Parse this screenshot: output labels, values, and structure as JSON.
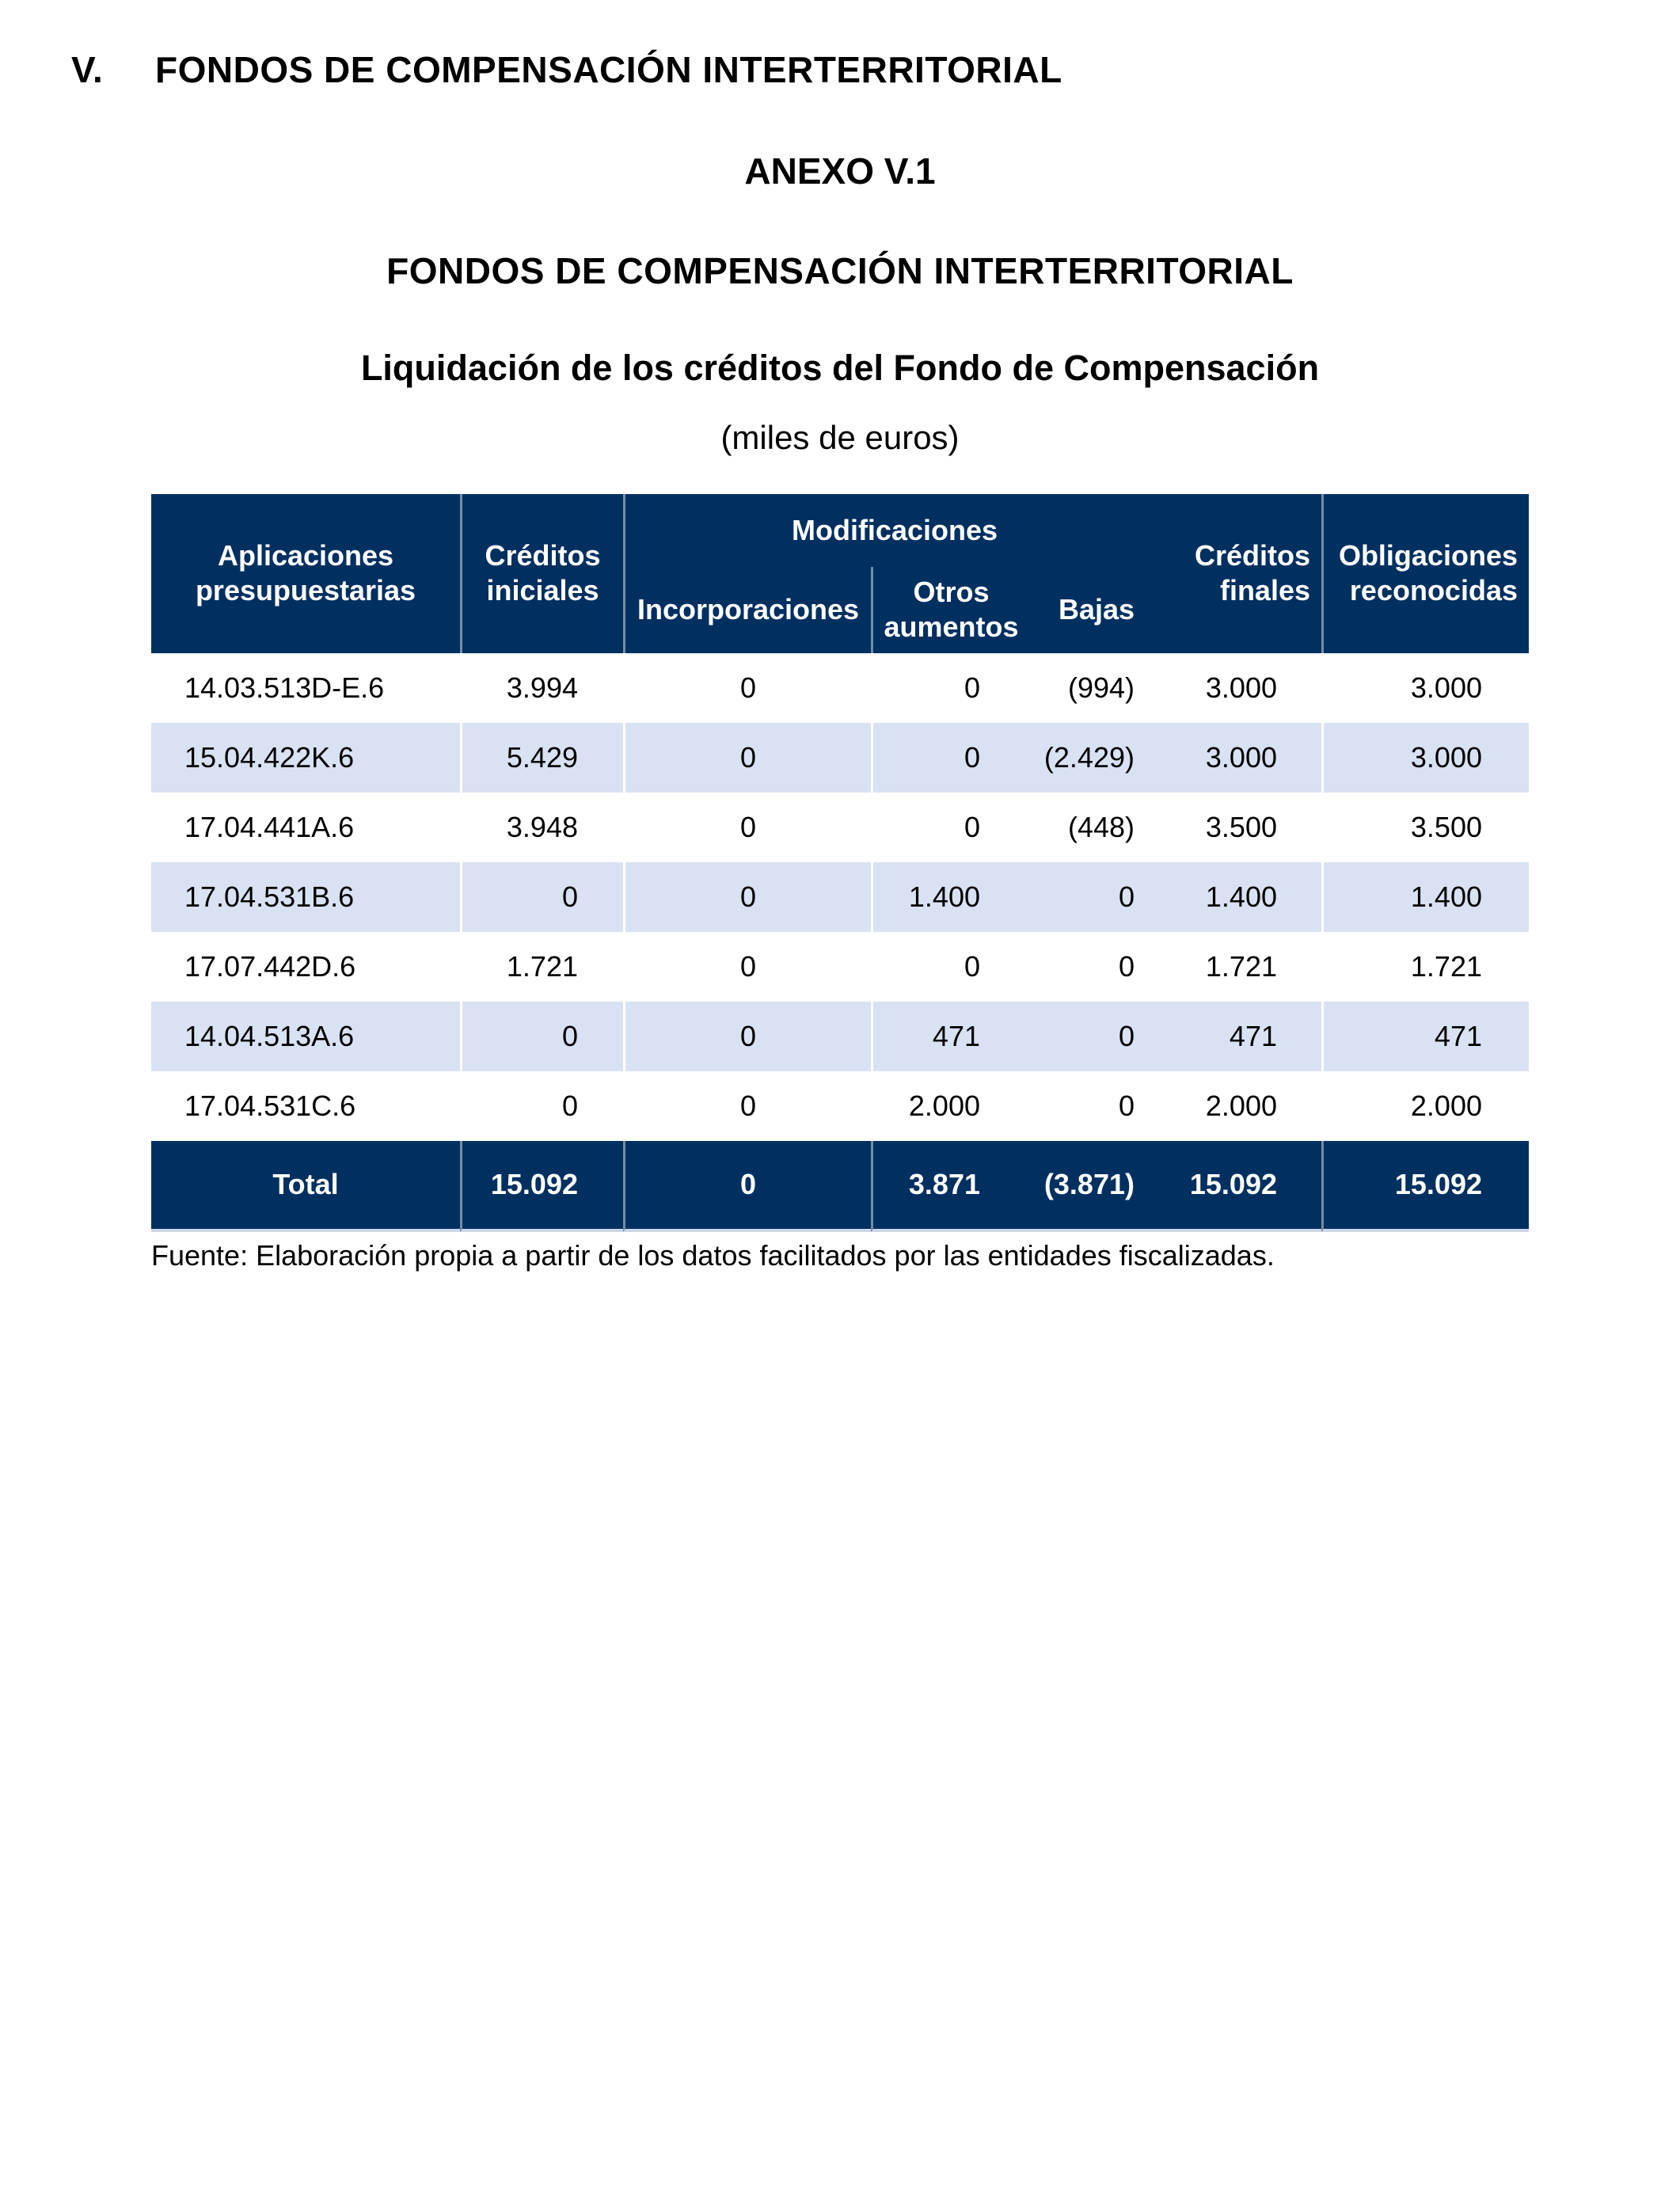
{
  "page": {
    "section_number": "V.",
    "section_title": "FONDOS DE COMPENSACIÓN INTERTERRITORIAL",
    "annex_label": "ANEXO V.1",
    "annex_title": "FONDOS DE COMPENSACIÓN INTERTERRITORIAL",
    "table_title": "Liquidación de los créditos del Fondo de Compensación",
    "table_units": "(miles de euros)",
    "source_note": "Fuente: Elaboración propia a partir de los datos facilitados por las entidades fiscalizadas."
  },
  "table": {
    "colors": {
      "header_bg": "#003060",
      "alt_row_bg": "#d9e2f2",
      "header_text": "#ffffff",
      "body_text": "#000000"
    },
    "header": {
      "col_aplicaciones": "Aplicaciones presupuestarias",
      "col_creditos_iniciales": "Créditos iniciales",
      "group_modificaciones": "Modificaciones",
      "col_incorporaciones": "Incorporaciones",
      "col_otros_aumentos": "Otros aumentos",
      "col_bajas": "Bajas",
      "col_creditos_finales": "Créditos finales",
      "col_obligaciones": "Obligaciones reconocidas"
    },
    "rows": [
      {
        "aplicacion": "14.03.513D-E.6",
        "creditos_iniciales": "3.994",
        "incorporaciones": "0",
        "otros_aumentos": "0",
        "bajas": "(994)",
        "creditos_finales": "3.000",
        "obligaciones": "3.000"
      },
      {
        "aplicacion": "15.04.422K.6",
        "creditos_iniciales": "5.429",
        "incorporaciones": "0",
        "otros_aumentos": "0",
        "bajas": "(2.429)",
        "creditos_finales": "3.000",
        "obligaciones": "3.000"
      },
      {
        "aplicacion": "17.04.441A.6",
        "creditos_iniciales": "3.948",
        "incorporaciones": "0",
        "otros_aumentos": "0",
        "bajas": "(448)",
        "creditos_finales": "3.500",
        "obligaciones": "3.500"
      },
      {
        "aplicacion": "17.04.531B.6",
        "creditos_iniciales": "0",
        "incorporaciones": "0",
        "otros_aumentos": "1.400",
        "bajas": "0",
        "creditos_finales": "1.400",
        "obligaciones": "1.400"
      },
      {
        "aplicacion": "17.07.442D.6",
        "creditos_iniciales": "1.721",
        "incorporaciones": "0",
        "otros_aumentos": "0",
        "bajas": "0",
        "creditos_finales": "1.721",
        "obligaciones": "1.721"
      },
      {
        "aplicacion": "14.04.513A.6",
        "creditos_iniciales": "0",
        "incorporaciones": "0",
        "otros_aumentos": "471",
        "bajas": "0",
        "creditos_finales": "471",
        "obligaciones": "471"
      },
      {
        "aplicacion": "17.04.531C.6",
        "creditos_iniciales": "0",
        "incorporaciones": "0",
        "otros_aumentos": "2.000",
        "bajas": "0",
        "creditos_finales": "2.000",
        "obligaciones": "2.000"
      }
    ],
    "total": {
      "label": "Total",
      "creditos_iniciales": "15.092",
      "incorporaciones": "0",
      "otros_aumentos": "3.871",
      "bajas": "(3.871)",
      "creditos_finales": "15.092",
      "obligaciones": "15.092"
    }
  }
}
